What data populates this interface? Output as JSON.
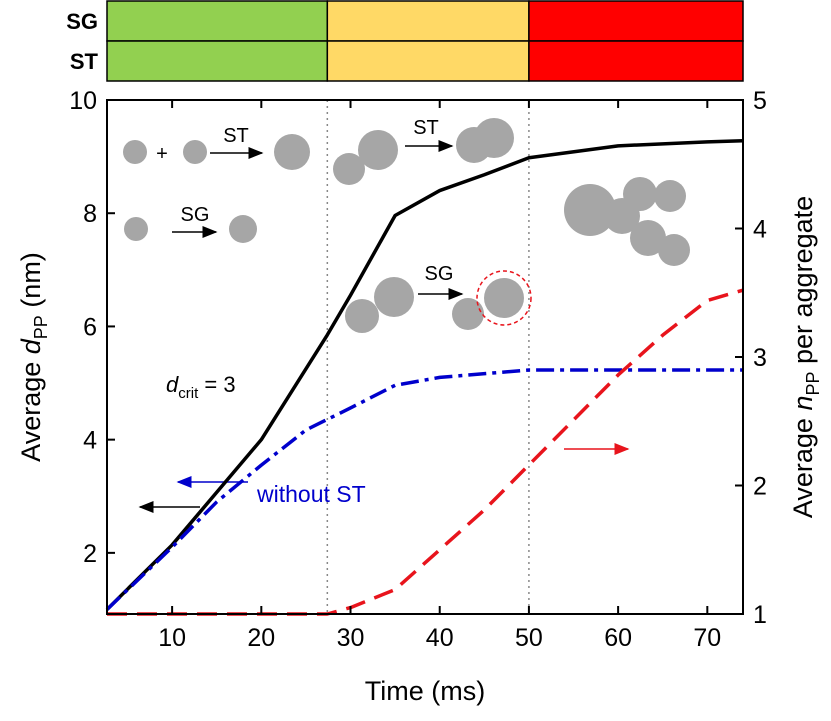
{
  "chart_data": {
    "type": "line",
    "xlabel": "Time (ms)",
    "ylabel": [
      "Average ",
      "d",
      "PP",
      " (nm)"
    ],
    "y2label": [
      "Average ",
      "n",
      "PP",
      " per aggregate"
    ],
    "xlim": [
      2.7,
      74
    ],
    "xticks": [
      10,
      20,
      30,
      40,
      50,
      60,
      70
    ],
    "ylim": [
      0.92,
      10
    ],
    "yticks": [
      2,
      4,
      6,
      8,
      10
    ],
    "y2lim": [
      1,
      5
    ],
    "y2ticks": [
      1,
      2,
      3,
      4,
      5
    ],
    "phase_bar": {
      "rows": [
        "SG",
        "ST"
      ],
      "colors": [
        "#92d050",
        "#ffd966",
        "#ff0000"
      ]
    },
    "phase_boundaries": [
      27.4,
      50
    ],
    "series": [
      {
        "color": "#000000",
        "style": "solid",
        "x": [
          2.7,
          10,
          20,
          27.4,
          30,
          35,
          40,
          45,
          50,
          60,
          70,
          74
        ],
        "values": [
          1.0,
          2.14,
          4.0,
          5.85,
          6.55,
          7.96,
          8.4,
          8.68,
          8.98,
          9.19,
          9.26,
          9.28
        ]
      },
      {
        "color": "#0000cc",
        "style": "dashdot",
        "x": [
          2.7,
          10,
          15,
          20,
          25,
          30,
          35,
          40,
          50,
          74
        ],
        "values": [
          1.0,
          2.1,
          2.9,
          3.55,
          4.17,
          4.56,
          4.96,
          5.1,
          5.23,
          5.23
        ]
      },
      {
        "color": "#e8141c",
        "style": "dashed",
        "axis": "y2",
        "x": [
          2.7,
          27.4,
          30,
          35,
          40,
          45,
          50,
          55,
          60,
          65,
          70,
          74
        ],
        "values": [
          1.0,
          1.0,
          1.05,
          1.19,
          1.5,
          1.81,
          2.16,
          2.51,
          2.86,
          3.17,
          3.44,
          3.52
        ]
      }
    ],
    "annotations": {
      "dcrit": [
        "d",
        "crit",
        " = 3"
      ],
      "without_st": "without ST",
      "plus": "+",
      "st_1": "ST",
      "sg_1": "SG",
      "st_2": "ST",
      "sg_2": "SG"
    }
  }
}
